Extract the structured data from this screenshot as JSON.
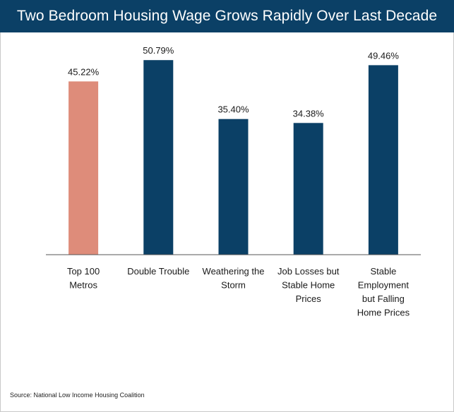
{
  "header": {
    "title": "Two Bedroom Housing Wage Grows Rapidly Over Last Decade"
  },
  "source": "Source: National Low Income Housing Coalition",
  "colors": {
    "title_bg": "#0b4066",
    "highlight_bar": "#de8c7a",
    "bar": "#0b4066",
    "axis": "#555555"
  },
  "chart_data": {
    "type": "bar",
    "title": "Two Bedroom Housing Wage Grows Rapidly Over Last Decade",
    "categories": [
      [
        "Top 100",
        "Metros"
      ],
      [
        "Double Trouble"
      ],
      [
        "Weathering the",
        "Storm"
      ],
      [
        "Job Losses but",
        "Stable Home",
        "Prices"
      ],
      [
        "Stable",
        "Employment",
        "but Falling",
        "Home Prices"
      ]
    ],
    "values": [
      45.22,
      50.79,
      35.4,
      34.38,
      49.46
    ],
    "value_labels": [
      "45.22%",
      "50.79%",
      "35.40%",
      "34.38%",
      "49.46%"
    ],
    "highlight_index": 0,
    "ylim": [
      0,
      58
    ],
    "grid": false,
    "xlabel": "",
    "ylabel": ""
  }
}
